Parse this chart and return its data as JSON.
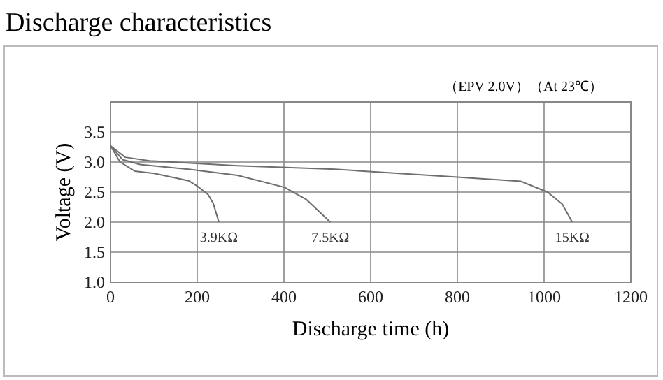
{
  "chart_data": {
    "type": "line",
    "title": "Discharge characteristics",
    "xlabel": "Discharge time (h)",
    "ylabel": "Voltage (V)",
    "annotations": [
      "（EPV 2.0V）（At 23℃）"
    ],
    "xlim": [
      0,
      1200
    ],
    "xticks": [
      0,
      200,
      400,
      600,
      800,
      1000,
      1200
    ],
    "ylim": [
      1.0,
      4.0
    ],
    "yticks": [
      {
        "value": 1,
        "label": "1.0"
      },
      {
        "value": 1.5,
        "label": "1.5"
      },
      {
        "value": 2,
        "label": "2.0"
      },
      {
        "value": 2.5,
        "label": "2.5"
      },
      {
        "value": 3,
        "label": "3.0"
      },
      {
        "value": 3.5,
        "label": "3.5"
      },
      {
        "value": 4,
        "label": null
      }
    ],
    "grid": true,
    "marker": "none",
    "line_style": "solid",
    "series": [
      {
        "name": "3.9KΩ",
        "color": "#6e6e6e",
        "x": [
          0,
          22,
          56,
          101,
          180,
          200,
          225,
          237,
          250
        ],
        "values": [
          3.27,
          3.0,
          2.85,
          2.81,
          2.69,
          2.6,
          2.46,
          2.31,
          2.0
        ]
      },
      {
        "name": "7.5KΩ",
        "color": "#6e6e6e",
        "x": [
          0,
          28,
          68,
          180,
          293,
          401,
          451,
          507
        ],
        "values": [
          3.27,
          3.04,
          2.96,
          2.88,
          2.78,
          2.58,
          2.38,
          2.0
        ]
      },
      {
        "name": "15KΩ",
        "color": "#6e6e6e",
        "x": [
          0,
          34,
          90,
          293,
          518,
          800,
          946,
          1008,
          1042,
          1065
        ],
        "values": [
          3.27,
          3.08,
          3.02,
          2.94,
          2.88,
          2.75,
          2.68,
          2.5,
          2.3,
          2.0
        ]
      }
    ]
  }
}
